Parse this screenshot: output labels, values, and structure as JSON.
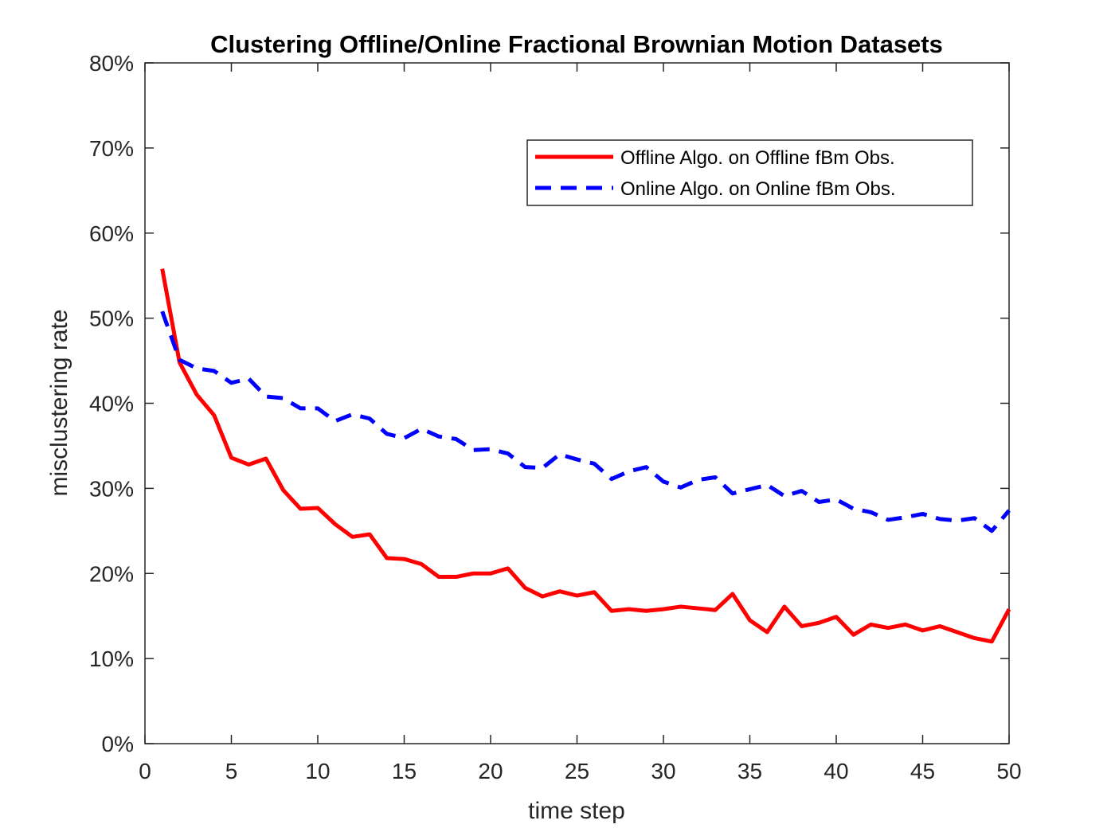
{
  "chart_data": {
    "type": "line",
    "title": "Clustering Offline/Online Fractional Brownian Motion Datasets",
    "xlabel": "time step",
    "ylabel": "misclustering rate",
    "xlim": [
      0,
      50
    ],
    "ylim": [
      0,
      80
    ],
    "xticks": [
      0,
      5,
      10,
      15,
      20,
      25,
      30,
      35,
      40,
      45,
      50
    ],
    "yticks": [
      0,
      10,
      20,
      30,
      40,
      50,
      60,
      70,
      80
    ],
    "xtick_labels": [
      "0",
      "5",
      "10",
      "15",
      "20",
      "25",
      "30",
      "35",
      "40",
      "45",
      "50"
    ],
    "ytick_labels": [
      "0%",
      "10%",
      "20%",
      "30%",
      "40%",
      "50%",
      "60%",
      "70%",
      "80%"
    ],
    "grid": false,
    "legend_position": "top-right",
    "x": [
      1,
      2,
      3,
      4,
      5,
      6,
      7,
      8,
      9,
      10,
      11,
      12,
      13,
      14,
      15,
      16,
      17,
      18,
      19,
      20,
      21,
      22,
      23,
      24,
      25,
      26,
      27,
      28,
      29,
      30,
      31,
      32,
      33,
      34,
      35,
      36,
      37,
      38,
      39,
      40,
      41,
      42,
      43,
      44,
      45,
      46,
      47,
      48,
      49,
      50
    ],
    "series": [
      {
        "name": "Offline Algo. on Offline fBm Obs.",
        "color": "#ff0000",
        "style": "solid",
        "values": [
          55.8,
          44.8,
          41.0,
          38.6,
          33.6,
          32.8,
          33.5,
          29.8,
          27.6,
          27.7,
          25.8,
          24.3,
          24.6,
          21.8,
          21.7,
          21.1,
          19.6,
          19.6,
          20.0,
          20.0,
          20.6,
          18.3,
          17.3,
          17.9,
          17.4,
          17.8,
          15.6,
          15.8,
          15.6,
          15.8,
          16.1,
          15.9,
          15.7,
          17.6,
          14.5,
          13.1,
          16.1,
          13.8,
          14.2,
          14.9,
          12.8,
          14.0,
          13.6,
          14.0,
          13.3,
          13.8,
          13.1,
          12.4,
          12.0,
          15.8
        ]
      },
      {
        "name": "Online Algo. on Online fBm Obs.",
        "color": "#0000ff",
        "style": "dashed",
        "values": [
          50.8,
          45.1,
          44.1,
          43.8,
          42.4,
          42.9,
          40.8,
          40.6,
          39.4,
          39.4,
          37.9,
          38.7,
          38.2,
          36.4,
          35.9,
          37.0,
          36.1,
          35.8,
          34.5,
          34.6,
          34.1,
          32.5,
          32.4,
          34.0,
          33.4,
          32.9,
          31.1,
          32.0,
          32.5,
          30.8,
          30.1,
          31.0,
          31.3,
          29.4,
          29.9,
          30.4,
          29.1,
          29.7,
          28.4,
          28.7,
          27.6,
          27.2,
          26.3,
          26.6,
          27.0,
          26.4,
          26.2,
          26.5,
          25.0,
          27.4
        ]
      }
    ]
  }
}
